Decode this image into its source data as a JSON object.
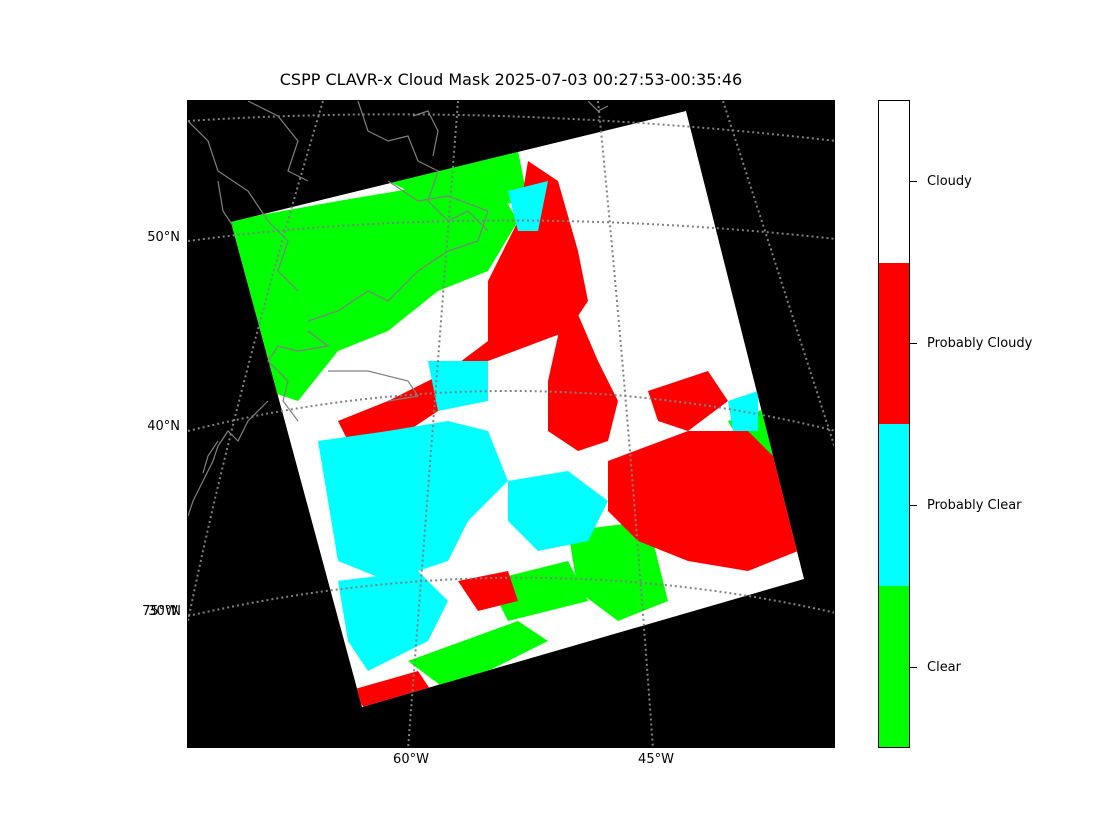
{
  "title": "CSPP CLAVR-x Cloud Mask 2025-07-03 00:27:53-00:35:46",
  "map": {
    "lat_labels": [
      {
        "text": "50°N"
      },
      {
        "text": "40°N"
      },
      {
        "text": "30°N"
      },
      {
        "text": "75°W"
      }
    ],
    "lon_labels": [
      {
        "text": "60°W"
      },
      {
        "text": "45°W"
      }
    ],
    "background_color": "#000000",
    "coastline_color": "#808080",
    "graticule_color": "#808080"
  },
  "colorbar": {
    "categories": [
      {
        "label": "Cloudy",
        "color": "#ffffff"
      },
      {
        "label": "Probably Cloudy",
        "color": "#ff0000"
      },
      {
        "label": "Probably Clear",
        "color": "#00ffff"
      },
      {
        "label": "Clear",
        "color": "#00ff00"
      }
    ]
  }
}
